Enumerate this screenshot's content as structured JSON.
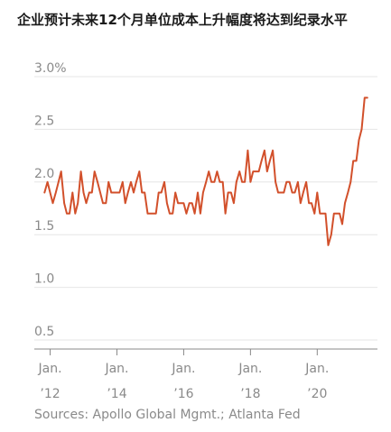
{
  "title": "企业预计未来12个月单位成本上升幅度将达到纪录水平",
  "source": "Sources: Apollo Global Mgmt.; Atlanta Fed",
  "colors": {
    "line": "#d2502b",
    "grid": "#e6e6e6",
    "axis": "#888888",
    "text": "#8a8a8a"
  },
  "chart_data": {
    "type": "line",
    "title": "企业预计未来12个月单位成本上升幅度将达到纪录水平",
    "xlabel": "",
    "ylabel": "",
    "ylim": [
      0.5,
      3.0
    ],
    "y_ticks": [
      0.5,
      1.0,
      1.5,
      2.0,
      2.5,
      3.0
    ],
    "y_tick_labels": [
      "0.5",
      "1.0",
      "1.5",
      "2.0",
      "2.5",
      "3.0%"
    ],
    "x_range": [
      2011.85,
      2021.75
    ],
    "x_ticks": [
      {
        "x": 2012.0,
        "label1": "Jan.",
        "label2": "’12"
      },
      {
        "x": 2014.0,
        "label1": "Jan.",
        "label2": "’14"
      },
      {
        "x": 2016.0,
        "label1": "Jan.",
        "label2": "’16"
      },
      {
        "x": 2018.0,
        "label1": "Jan.",
        "label2": "’18"
      },
      {
        "x": 2020.0,
        "label1": "Jan.",
        "label2": "’20"
      }
    ],
    "grid": true,
    "series": [
      {
        "x": [
          2011.83,
          2011.92,
          2012.0,
          2012.08,
          2012.17,
          2012.25,
          2012.33,
          2012.42,
          2012.5,
          2012.58,
          2012.67,
          2012.75,
          2012.83,
          2012.92,
          2013.0,
          2013.08,
          2013.17,
          2013.25,
          2013.33,
          2013.42,
          2013.5,
          2013.58,
          2013.67,
          2013.75,
          2013.83,
          2013.92,
          2014.0,
          2014.08,
          2014.17,
          2014.25,
          2014.33,
          2014.42,
          2014.5,
          2014.58,
          2014.67,
          2014.75,
          2014.83,
          2014.92,
          2015.0,
          2015.08,
          2015.17,
          2015.25,
          2015.33,
          2015.42,
          2015.5,
          2015.58,
          2015.67,
          2015.75,
          2015.83,
          2015.92,
          2016.0,
          2016.08,
          2016.17,
          2016.25,
          2016.33,
          2016.42,
          2016.5,
          2016.58,
          2016.67,
          2016.75,
          2016.83,
          2016.92,
          2017.0,
          2017.08,
          2017.17,
          2017.25,
          2017.33,
          2017.42,
          2017.5,
          2017.58,
          2017.67,
          2017.75,
          2017.83,
          2017.92,
          2018.0,
          2018.08,
          2018.17,
          2018.25,
          2018.33,
          2018.42,
          2018.5,
          2018.58,
          2018.67,
          2018.75,
          2018.83,
          2018.92,
          2019.0,
          2019.08,
          2019.17,
          2019.25,
          2019.33,
          2019.42,
          2019.5,
          2019.58,
          2019.67,
          2019.75,
          2019.83,
          2019.92,
          2020.0,
          2020.08,
          2020.17,
          2020.25,
          2020.33,
          2020.42,
          2020.5,
          2020.58,
          2020.67,
          2020.75,
          2020.83,
          2020.92,
          2021.0,
          2021.08,
          2021.17,
          2021.25,
          2021.33,
          2021.42,
          2021.5
        ],
        "values": [
          1.9,
          2.0,
          1.9,
          1.8,
          1.9,
          2.0,
          2.1,
          1.8,
          1.7,
          1.7,
          1.9,
          1.7,
          1.8,
          2.1,
          1.9,
          1.8,
          1.9,
          1.9,
          2.1,
          2.0,
          1.9,
          1.8,
          1.8,
          2.0,
          1.9,
          1.9,
          1.9,
          1.9,
          2.0,
          1.8,
          1.9,
          2.0,
          1.9,
          2.0,
          2.1,
          1.9,
          1.9,
          1.7,
          1.7,
          1.7,
          1.7,
          1.9,
          1.9,
          2.0,
          1.8,
          1.7,
          1.7,
          1.9,
          1.8,
          1.8,
          1.8,
          1.7,
          1.8,
          1.8,
          1.7,
          1.9,
          1.7,
          1.9,
          2.0,
          2.1,
          2.0,
          2.0,
          2.1,
          2.0,
          2.0,
          1.7,
          1.9,
          1.9,
          1.8,
          2.0,
          2.1,
          2.0,
          2.0,
          2.3,
          2.0,
          2.1,
          2.1,
          2.1,
          2.2,
          2.3,
          2.1,
          2.2,
          2.3,
          2.0,
          1.9,
          1.9,
          1.9,
          2.0,
          2.0,
          1.9,
          1.9,
          2.0,
          1.8,
          1.9,
          2.0,
          1.8,
          1.8,
          1.7,
          1.9,
          1.7,
          1.7,
          1.7,
          1.4,
          1.5,
          1.7,
          1.7,
          1.7,
          1.6,
          1.8,
          1.9,
          2.0,
          2.2,
          2.2,
          2.4,
          2.5,
          2.8,
          2.8
        ]
      }
    ]
  }
}
